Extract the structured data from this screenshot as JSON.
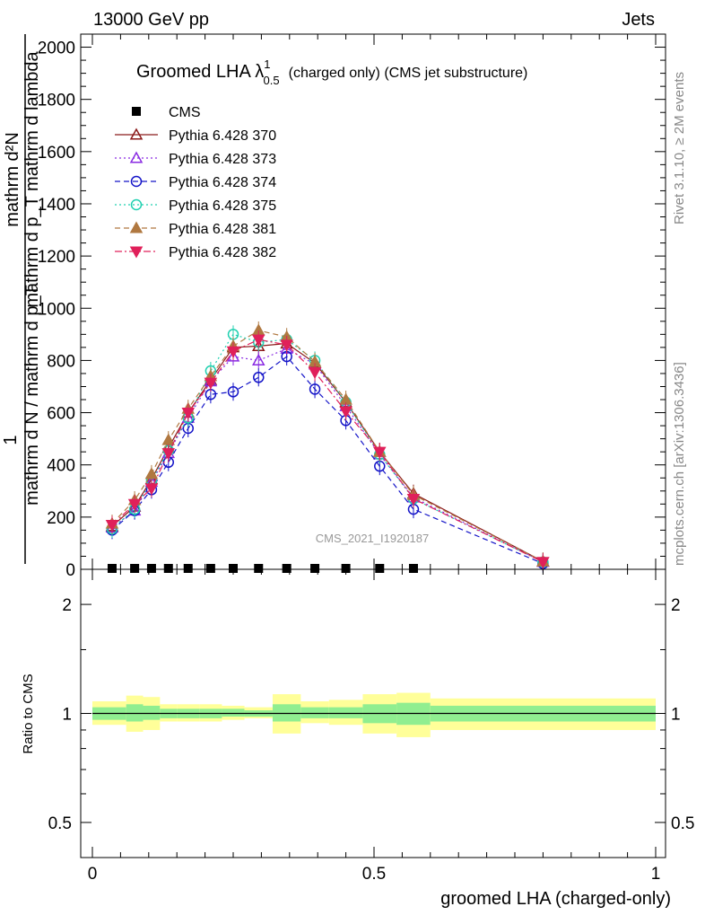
{
  "header": {
    "left": "13000 GeV pp",
    "right": "Jets"
  },
  "side": {
    "rivet": "Rivet 3.1.10, ≥ 2M events",
    "mcplots": "mcplots.cern.ch [arXiv:1306.3436]"
  },
  "watermark": "CMS_2021_I1920187",
  "chart_data": [
    {
      "type": "line",
      "title_main": "Groomed LHA",
      "title_lambda": "λ",
      "title_sup": "1",
      "title_sub": "0.5",
      "title_rest": "(charged only) (CMS jet substructure)",
      "ylabel_top": "mathrm d²N",
      "ylabel_top2": "mathrm d p_T mathrm d lambda",
      "ylabel_bottom_1": "1",
      "ylabel_bottom_2": "mathrm d N / mathrm d p_T",
      "xlim": [
        0,
        1
      ],
      "ylim": [
        0,
        2050
      ],
      "yticks": [
        0,
        200,
        400,
        600,
        800,
        1000,
        1200,
        1400,
        1600,
        1800,
        2000
      ],
      "x": [
        0.035,
        0.075,
        0.105,
        0.135,
        0.17,
        0.21,
        0.25,
        0.295,
        0.345,
        0.395,
        0.45,
        0.51,
        0.57,
        0.8
      ],
      "series": [
        {
          "name": "CMS",
          "color": "#000000",
          "marker": "square",
          "dash": "",
          "values": [
            0,
            0,
            0,
            0,
            0,
            0,
            0,
            0,
            0,
            0,
            0,
            0,
            0,
            null
          ]
        },
        {
          "name": "Pythia 6.428 370",
          "color": "#8b1a1a",
          "marker": "triangle-up-open",
          "dash": "",
          "values": [
            165,
            240,
            345,
            465,
            600,
            725,
            850,
            855,
            865,
            790,
            640,
            450,
            290,
            30
          ]
        },
        {
          "name": "Pythia 6.428 373",
          "color": "#8a2be2",
          "marker": "triangle-up-open",
          "dash": "2,3",
          "values": [
            160,
            225,
            335,
            445,
            580,
            720,
            815,
            800,
            845,
            785,
            625,
            440,
            275,
            28
          ]
        },
        {
          "name": "Pythia 6.428 374",
          "color": "#1414c8",
          "marker": "circle-open",
          "dash": "6,4",
          "values": [
            150,
            225,
            305,
            410,
            540,
            670,
            680,
            735,
            815,
            690,
            570,
            395,
            230,
            22
          ]
        },
        {
          "name": "Pythia 6.428 375",
          "color": "#20d0b0",
          "marker": "circle-open",
          "dash": "2,3",
          "values": [
            155,
            230,
            340,
            455,
            580,
            760,
            900,
            870,
            880,
            800,
            640,
            440,
            270,
            28
          ]
        },
        {
          "name": "Pythia 6.428 381",
          "color": "#b07840",
          "marker": "triangle-up",
          "dash": "6,4",
          "values": [
            175,
            265,
            365,
            495,
            615,
            740,
            855,
            915,
            890,
            795,
            650,
            450,
            285,
            30
          ]
        },
        {
          "name": "Pythia 6.428 382",
          "color": "#e0205a",
          "marker": "triangle-down",
          "dash": "8,3,2,3",
          "values": [
            170,
            250,
            310,
            445,
            600,
            715,
            835,
            880,
            860,
            755,
            605,
            450,
            270,
            28
          ]
        }
      ]
    },
    {
      "type": "area",
      "ylabel": "Ratio to CMS",
      "xlabel": "groomed LHA (charged-only)",
      "xlim": [
        0,
        1
      ],
      "ylim": [
        0.4,
        2.5
      ],
      "log_scale": true,
      "yticks": [
        0.5,
        1,
        2
      ],
      "ytick_labels": [
        "0.5",
        "1",
        "2"
      ],
      "xticks": [
        0,
        0.5,
        1
      ],
      "xtick_labels": [
        "0",
        "0.5",
        "1"
      ],
      "bins": [
        {
          "x0": 0.0,
          "x1": 0.06,
          "in_lo": 0.96,
          "in_hi": 1.04,
          "out_lo": 0.93,
          "out_hi": 1.08
        },
        {
          "x0": 0.06,
          "x1": 0.09,
          "in_lo": 0.95,
          "in_hi": 1.06,
          "out_lo": 0.89,
          "out_hi": 1.12
        },
        {
          "x0": 0.09,
          "x1": 0.12,
          "in_lo": 0.96,
          "in_hi": 1.05,
          "out_lo": 0.9,
          "out_hi": 1.11
        },
        {
          "x0": 0.12,
          "x1": 0.15,
          "in_lo": 0.97,
          "in_hi": 1.03,
          "out_lo": 0.95,
          "out_hi": 1.06
        },
        {
          "x0": 0.15,
          "x1": 0.19,
          "in_lo": 0.97,
          "in_hi": 1.03,
          "out_lo": 0.95,
          "out_hi": 1.06
        },
        {
          "x0": 0.19,
          "x1": 0.23,
          "in_lo": 0.97,
          "in_hi": 1.03,
          "out_lo": 0.95,
          "out_hi": 1.06
        },
        {
          "x0": 0.23,
          "x1": 0.27,
          "in_lo": 0.98,
          "in_hi": 1.03,
          "out_lo": 0.96,
          "out_hi": 1.05
        },
        {
          "x0": 0.27,
          "x1": 0.32,
          "in_lo": 0.98,
          "in_hi": 1.02,
          "out_lo": 0.97,
          "out_hi": 1.04
        },
        {
          "x0": 0.32,
          "x1": 0.37,
          "in_lo": 0.95,
          "in_hi": 1.06,
          "out_lo": 0.88,
          "out_hi": 1.13
        },
        {
          "x0": 0.37,
          "x1": 0.42,
          "in_lo": 0.97,
          "in_hi": 1.04,
          "out_lo": 0.94,
          "out_hi": 1.08
        },
        {
          "x0": 0.42,
          "x1": 0.48,
          "in_lo": 0.97,
          "in_hi": 1.04,
          "out_lo": 0.93,
          "out_hi": 1.09
        },
        {
          "x0": 0.48,
          "x1": 0.54,
          "in_lo": 0.94,
          "in_hi": 1.06,
          "out_lo": 0.88,
          "out_hi": 1.13
        },
        {
          "x0": 0.54,
          "x1": 0.6,
          "in_lo": 0.93,
          "in_hi": 1.07,
          "out_lo": 0.86,
          "out_hi": 1.14
        },
        {
          "x0": 0.6,
          "x1": 1.0,
          "in_lo": 0.95,
          "in_hi": 1.05,
          "out_lo": 0.9,
          "out_hi": 1.1
        }
      ],
      "band_colors": {
        "inner": "#90ee90",
        "outer": "#ffff99"
      }
    }
  ]
}
